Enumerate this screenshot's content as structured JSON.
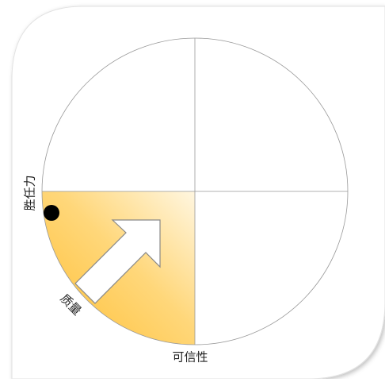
{
  "labels": {
    "left": "胜任力",
    "diagonal": "质量",
    "bottom": "可信性"
  }
}
